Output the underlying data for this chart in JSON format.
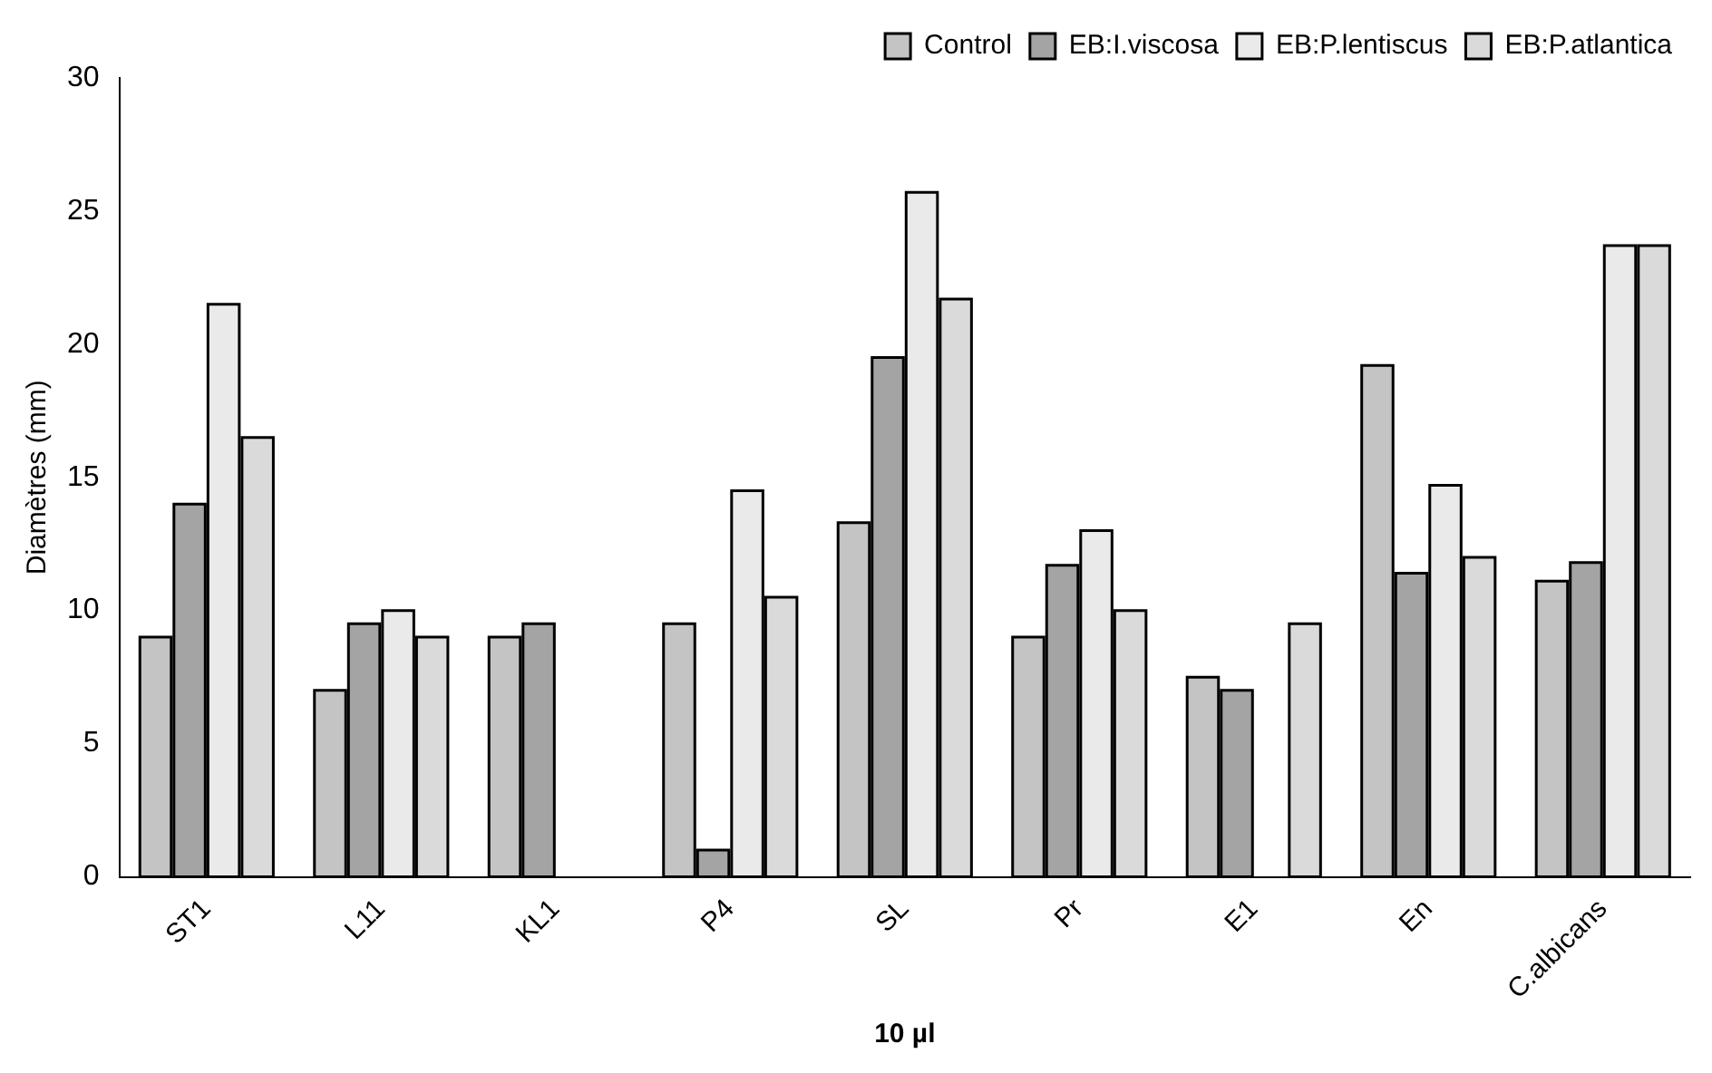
{
  "chart_data": {
    "type": "bar",
    "xlabel": "10 µl",
    "ylabel": "Diamètres (mm)",
    "categories": [
      "ST1",
      "L11",
      "KL1",
      "P4",
      "SL",
      "Pr",
      "E1",
      "En",
      "C.albicans"
    ],
    "series": [
      {
        "name": "Control",
        "color": "#c4c4c4",
        "values": [
          9,
          7,
          9,
          9.5,
          13.3,
          9,
          7.5,
          19.2,
          11.1
        ]
      },
      {
        "name": "EB:I.viscosa",
        "color": "#a4a4a4",
        "values": [
          14,
          9.5,
          9.5,
          1,
          19.5,
          11.7,
          7,
          11.4,
          11.8
        ]
      },
      {
        "name": "EB:P.lentiscus",
        "color": "#eaeaea",
        "values": [
          21.5,
          10,
          null,
          14.5,
          25.7,
          13,
          null,
          14.7,
          23.7
        ]
      },
      {
        "name": "EB:P.atlantica",
        "color": "#dadada",
        "values": [
          16.5,
          9,
          null,
          10.5,
          21.7,
          10,
          9.5,
          12,
          23.7
        ]
      }
    ],
    "ylim": [
      0,
      30
    ],
    "yticks": [
      0,
      5,
      10,
      15,
      20,
      25,
      30
    ],
    "grid": false,
    "legend": "top right"
  }
}
